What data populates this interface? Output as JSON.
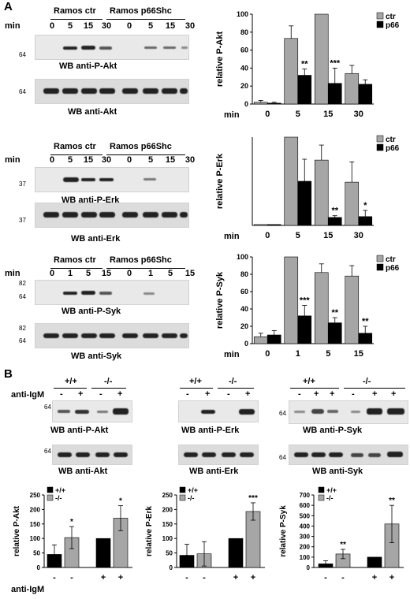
{
  "panel_a": {
    "letter": "A",
    "blocks": [
      {
        "group_ctr": "Ramos ctr",
        "group_p66": "Ramos p66Shc",
        "min_label": "min",
        "time_labels": [
          "0",
          "5",
          "15",
          "30",
          "0",
          "5",
          "15",
          "30"
        ],
        "phospho_label": "WB anti-P-Akt",
        "total_label": "WB anti-Akt",
        "mw_phospho": [
          "64"
        ],
        "mw_total": [
          "64"
        ]
      },
      {
        "group_ctr": "Ramos ctr",
        "group_p66": "Ramos p66Shc",
        "min_label": "min",
        "time_labels": [
          "0",
          "5",
          "15",
          "30",
          "0",
          "5",
          "15",
          "30"
        ],
        "phospho_label": "WB anti-P-Erk",
        "total_label": "WB anti-Erk",
        "mw_phospho": [
          "37"
        ],
        "mw_total": [
          "37"
        ]
      },
      {
        "group_ctr": "Ramos ctr",
        "group_p66": "Ramos p66Shc",
        "min_label": "min",
        "time_labels": [
          "0",
          "1",
          "5",
          "15",
          "0",
          "1",
          "5",
          "15"
        ],
        "phospho_label": "WB anti-P-Syk",
        "total_label": "WB anti-Syk",
        "mw_phospho": [
          "82",
          "64"
        ],
        "mw_total": [
          "82",
          "64"
        ]
      }
    ]
  },
  "panel_b": {
    "letter": "B",
    "stim_label": "anti-IgM",
    "blots": [
      {
        "genotypes": [
          "+/+",
          "-/-"
        ],
        "signs": [
          "-",
          "+",
          "-",
          "+"
        ],
        "phospho_label": "WB anti-P-Akt",
        "total_label": "WB anti-Akt",
        "mw": "64"
      },
      {
        "genotypes": [
          "+/+",
          "-/-"
        ],
        "signs": [
          "-",
          "+",
          "-",
          "+"
        ],
        "phospho_label": "WB anti-P-Erk",
        "total_label": "WB anti-Erk",
        "mw": "64"
      },
      {
        "genotypes": [
          "+/+",
          "-/-"
        ],
        "signs": [
          "-",
          "+",
          "+",
          "-",
          "+",
          "+"
        ],
        "phospho_label": "WB anti-P-Syk",
        "total_label": "WB anti-Syk",
        "mw": "64"
      }
    ],
    "bottom_stim_label": "anti-IgM",
    "bottom_signs": [
      "-",
      "-",
      "+",
      "+"
    ]
  },
  "colors": {
    "ctr": "#a6a6a6",
    "p66": "#000000",
    "wt": "#000000",
    "ko": "#a6a6a6"
  },
  "chart_data": [
    {
      "type": "bar",
      "ylabel": "relative P-Akt",
      "xlabel": "",
      "x_prefix": "min",
      "ylim": [
        0,
        100
      ],
      "yticks": [
        0,
        20,
        40,
        60,
        80,
        100
      ],
      "categories": [
        "0",
        "5",
        "15",
        "30"
      ],
      "legend_placement": "top-right",
      "series": [
        {
          "name": "ctr",
          "values": [
            2,
            73,
            100,
            34
          ],
          "errors": [
            2,
            14,
            0,
            9
          ]
        },
        {
          "name": "p66",
          "values": [
            1,
            32,
            23,
            22
          ],
          "errors": [
            1,
            7,
            17,
            5
          ]
        }
      ],
      "annotations": [
        {
          "category": "5",
          "series": "p66",
          "text": "**"
        },
        {
          "category": "15",
          "series": "p66",
          "text": "***"
        }
      ]
    },
    {
      "type": "bar",
      "ylabel": "relative P-Erk",
      "xlabel": "",
      "x_prefix": "min",
      "ylim": [
        0,
        100
      ],
      "yticks": [],
      "categories": [
        "0",
        "5",
        "15",
        "30"
      ],
      "legend_placement": "top-right",
      "series": [
        {
          "name": "ctr",
          "values": [
            1,
            100,
            74,
            49
          ],
          "errors": [
            0,
            0,
            17,
            23
          ]
        },
        {
          "name": "p66",
          "values": [
            1,
            50,
            9,
            10
          ],
          "errors": [
            0,
            25,
            2,
            7
          ]
        }
      ],
      "annotations": [
        {
          "category": "15",
          "series": "p66",
          "text": "**"
        },
        {
          "category": "30",
          "series": "p66",
          "text": "*"
        }
      ]
    },
    {
      "type": "bar",
      "ylabel": "relative P-Syk",
      "xlabel": "",
      "x_prefix": "min",
      "ylim": [
        0,
        100
      ],
      "yticks": [
        0,
        20,
        40,
        60,
        80,
        100
      ],
      "categories": [
        "0",
        "1",
        "5",
        "15"
      ],
      "legend_placement": "top-right",
      "series": [
        {
          "name": "ctr",
          "values": [
            8,
            100,
            82,
            78
          ],
          "errors": [
            4,
            0,
            10,
            12
          ]
        },
        {
          "name": "p66",
          "values": [
            10,
            32,
            24,
            12
          ],
          "errors": [
            5,
            12,
            6,
            8
          ]
        }
      ],
      "annotations": [
        {
          "category": "1",
          "series": "p66",
          "text": "***"
        },
        {
          "category": "5",
          "series": "p66",
          "text": "**"
        },
        {
          "category": "15",
          "series": "p66",
          "text": "**"
        }
      ]
    },
    {
      "type": "bar",
      "ylabel": "relative P-Akt",
      "xlabel": "",
      "ylim": [
        0,
        250
      ],
      "yticks": [
        0,
        50,
        100,
        150,
        200,
        250
      ],
      "categories": [
        "- / +/+",
        "- / -/-",
        "+ / +/+",
        "+ / -/-"
      ],
      "legend_placement": "top-left",
      "legend": [
        "+/+",
        "-/-"
      ],
      "bars": [
        {
          "genotype": "+/+",
          "value": 45,
          "error": 33
        },
        {
          "genotype": "-/-",
          "value": 103,
          "error": 38,
          "annotation": "*"
        },
        {
          "genotype": "+/+",
          "value": 100,
          "error": 0
        },
        {
          "genotype": "-/-",
          "value": 170,
          "error": 43,
          "annotation": "*"
        }
      ]
    },
    {
      "type": "bar",
      "ylabel": "relative P-Erk",
      "xlabel": "",
      "ylim": [
        0,
        250
      ],
      "yticks": [
        0,
        50,
        100,
        150,
        200,
        250
      ],
      "categories": [
        "- / +/+",
        "- / -/-",
        "+ / +/+",
        "+ / -/-"
      ],
      "legend_placement": "top-left",
      "legend": [
        "+/+",
        "-/-"
      ],
      "bars": [
        {
          "genotype": "+/+",
          "value": 42,
          "error": 38
        },
        {
          "genotype": "-/-",
          "value": 47,
          "error": 42
        },
        {
          "genotype": "+/+",
          "value": 100,
          "error": 0
        },
        {
          "genotype": "-/-",
          "value": 193,
          "error": 30,
          "annotation": "***"
        }
      ]
    },
    {
      "type": "bar",
      "ylabel": "relative P-Syk",
      "xlabel": "",
      "ylim": [
        0,
        700
      ],
      "yticks": [
        0,
        100,
        200,
        300,
        400,
        500,
        600,
        700
      ],
      "categories": [
        "- / +/+",
        "- / -/-",
        "+ / +/+",
        "+ / -/-"
      ],
      "legend_placement": "top-left",
      "legend": [
        "+/+",
        "-/-"
      ],
      "bars": [
        {
          "genotype": "+/+",
          "value": 35,
          "error": 30
        },
        {
          "genotype": "-/-",
          "value": 130,
          "error": 45,
          "annotation": "**"
        },
        {
          "genotype": "+/+",
          "value": 100,
          "error": 0
        },
        {
          "genotype": "-/-",
          "value": 420,
          "error": 180,
          "annotation": "**"
        }
      ]
    }
  ]
}
